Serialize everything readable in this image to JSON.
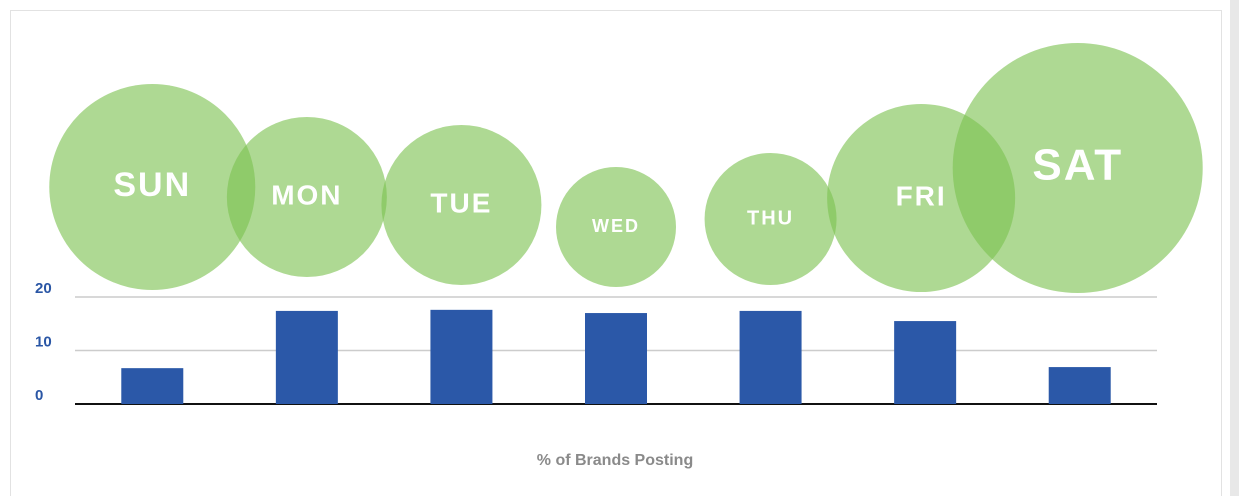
{
  "chart_data": {
    "type": "bar",
    "categories": [
      "SUN",
      "MON",
      "TUE",
      "WED",
      "THU",
      "FRI",
      "SAT"
    ],
    "values": [
      6.7,
      17.4,
      17.6,
      17,
      17.4,
      15.5,
      6.9
    ],
    "color": "#2b58a8",
    "bubble_color": "#7cc150",
    "ylim": [
      0,
      20
    ],
    "yticks": [
      0,
      10,
      20
    ],
    "grid": true,
    "x_label": "% of Brands Posting"
  }
}
